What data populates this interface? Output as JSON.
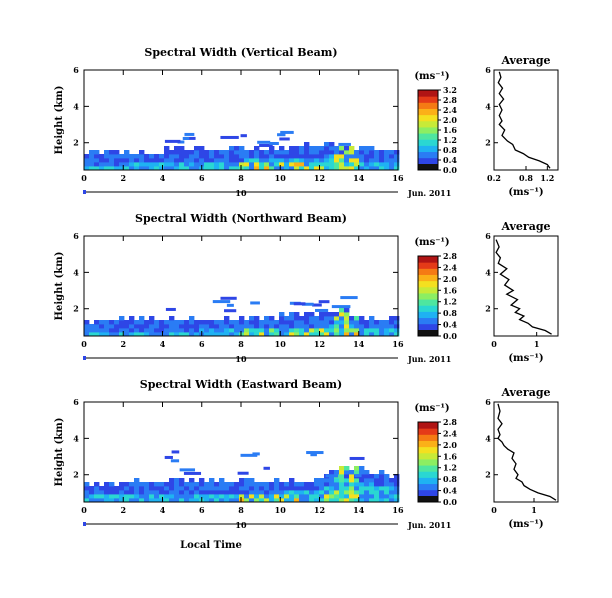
{
  "figure": {
    "xlabel": "Local Time",
    "date_label": "Jun. 2011",
    "date_marker": "10",
    "ylabel": "Height (km)",
    "avg_title": "Average",
    "unit_label": "(ms⁻¹)",
    "colormap": [
      "#1e28b4",
      "#2e46e6",
      "#2a7cf4",
      "#1fb2f2",
      "#2ad7d2",
      "#4ee6a0",
      "#8cee62",
      "#c8ea38",
      "#f4e020",
      "#fbb018",
      "#f57a14",
      "#e43a18",
      "#b01414"
    ]
  },
  "chart_data": [
    {
      "type": "heatmap",
      "title": "Spectral Width (Vertical Beam)",
      "xlabel": "Local Time",
      "ylabel": "Height (km)",
      "x_ticks": [
        "0",
        "2",
        "4",
        "6",
        "8",
        "10",
        "12",
        "14",
        "16"
      ],
      "y_ticks": [
        "2",
        "4",
        "6"
      ],
      "xlim": [
        0,
        16
      ],
      "ylim": [
        0.5,
        6
      ],
      "colorbar": {
        "label": "(ms⁻¹)",
        "ticks": [
          "0.0",
          "0.4",
          "0.8",
          "1.2",
          "1.6",
          "2.0",
          "2.4",
          "2.8",
          "3.2"
        ],
        "range": [
          0,
          3.2
        ]
      },
      "echo_top_km": [
        [
          0,
          1.4
        ],
        [
          2,
          1.5
        ],
        [
          4,
          1.6
        ],
        [
          6,
          1.6
        ],
        [
          8,
          1.7
        ],
        [
          10,
          1.8
        ],
        [
          12,
          1.9
        ],
        [
          13,
          2.0
        ],
        [
          14,
          1.7
        ],
        [
          16,
          1.6
        ]
      ],
      "average_profile": {
        "title": "Average",
        "xlabel": "(ms⁻¹)",
        "x_ticks": [
          "0.2",
          "0.8",
          "1.2"
        ],
        "y_ticks": [
          "2",
          "4",
          "6"
        ],
        "xlim": [
          0.2,
          1.4
        ],
        "ylim": [
          0.5,
          6
        ],
        "points": [
          [
            1.25,
            0.6
          ],
          [
            1.2,
            0.8
          ],
          [
            1.05,
            1.0
          ],
          [
            0.85,
            1.2
          ],
          [
            0.75,
            1.4
          ],
          [
            0.6,
            1.6
          ],
          [
            0.55,
            1.9
          ],
          [
            0.45,
            2.1
          ],
          [
            0.35,
            2.4
          ],
          [
            0.4,
            2.7
          ],
          [
            0.3,
            3.0
          ],
          [
            0.35,
            3.2
          ],
          [
            0.3,
            3.5
          ],
          [
            0.35,
            3.8
          ],
          [
            0.3,
            4.1
          ],
          [
            0.38,
            4.4
          ],
          [
            0.3,
            4.7
          ],
          [
            0.36,
            5.0
          ],
          [
            0.28,
            5.3
          ],
          [
            0.33,
            5.6
          ],
          [
            0.3,
            5.9
          ]
        ]
      }
    },
    {
      "type": "heatmap",
      "title": "Spectral Width (Northward Beam)",
      "xlabel": "Local Time",
      "ylabel": "Height (km)",
      "x_ticks": [
        "0",
        "2",
        "4",
        "6",
        "8",
        "10",
        "12",
        "14",
        "16"
      ],
      "y_ticks": [
        "2",
        "4",
        "6"
      ],
      "xlim": [
        0,
        16
      ],
      "ylim": [
        0.5,
        6
      ],
      "colorbar": {
        "label": "(ms⁻¹)",
        "ticks": [
          "0.0",
          "0.4",
          "0.8",
          "1.2",
          "1.6",
          "2.0",
          "2.4",
          "2.8"
        ],
        "range": [
          0,
          2.8
        ]
      },
      "echo_top_km": [
        [
          0,
          1.3
        ],
        [
          2,
          1.4
        ],
        [
          4,
          1.4
        ],
        [
          6,
          1.5
        ],
        [
          8,
          1.5
        ],
        [
          10,
          1.6
        ],
        [
          12,
          1.7
        ],
        [
          13,
          2.0
        ],
        [
          14,
          1.6
        ],
        [
          16,
          1.5
        ]
      ],
      "average_profile": {
        "title": "Average",
        "xlabel": "(ms⁻¹)",
        "x_ticks": [
          "0",
          "1"
        ],
        "y_ticks": [
          "2",
          "4",
          "6"
        ],
        "xlim": [
          0,
          1.5
        ],
        "ylim": [
          0.5,
          6
        ],
        "points": [
          [
            1.35,
            0.6
          ],
          [
            1.2,
            0.8
          ],
          [
            0.9,
            1.0
          ],
          [
            0.8,
            1.2
          ],
          [
            0.6,
            1.4
          ],
          [
            0.7,
            1.6
          ],
          [
            0.5,
            1.8
          ],
          [
            0.6,
            2.0
          ],
          [
            0.4,
            2.2
          ],
          [
            0.55,
            2.5
          ],
          [
            0.3,
            2.8
          ],
          [
            0.45,
            3.0
          ],
          [
            0.25,
            3.3
          ],
          [
            0.35,
            3.6
          ],
          [
            0.15,
            3.9
          ],
          [
            0.3,
            4.2
          ],
          [
            0.1,
            4.5
          ],
          [
            0.15,
            4.8
          ],
          [
            0.05,
            5.1
          ],
          [
            0.12,
            5.4
          ],
          [
            0.05,
            5.8
          ]
        ]
      }
    },
    {
      "type": "heatmap",
      "title": "Spectral Width (Eastward Beam)",
      "xlabel": "Local Time",
      "ylabel": "Height (km)",
      "x_ticks": [
        "0",
        "2",
        "4",
        "6",
        "8",
        "10",
        "12",
        "14",
        "16"
      ],
      "y_ticks": [
        "2",
        "4",
        "6"
      ],
      "xlim": [
        0,
        16
      ],
      "ylim": [
        0.5,
        6
      ],
      "colorbar": {
        "label": "(ms⁻¹)",
        "ticks": [
          "0.0",
          "0.4",
          "0.8",
          "1.2",
          "1.6",
          "2.0",
          "2.4",
          "2.8"
        ],
        "range": [
          0,
          2.8
        ]
      },
      "echo_top_km": [
        [
          0,
          1.5
        ],
        [
          2,
          1.6
        ],
        [
          4,
          1.7
        ],
        [
          6,
          1.7
        ],
        [
          8,
          1.7
        ],
        [
          10,
          1.7
        ],
        [
          12,
          1.8
        ],
        [
          13,
          2.5
        ],
        [
          14,
          2.3
        ],
        [
          16,
          1.9
        ]
      ],
      "average_profile": {
        "title": "Average",
        "xlabel": "(ms⁻¹)",
        "x_ticks": [
          "0",
          "1"
        ],
        "y_ticks": [
          "2",
          "4",
          "6"
        ],
        "xlim": [
          0,
          1.6
        ],
        "ylim": [
          0.5,
          6
        ],
        "points": [
          [
            1.55,
            0.6
          ],
          [
            1.4,
            0.8
          ],
          [
            1.1,
            1.0
          ],
          [
            0.9,
            1.2
          ],
          [
            0.75,
            1.4
          ],
          [
            0.7,
            1.6
          ],
          [
            0.55,
            1.8
          ],
          [
            0.6,
            2.0
          ],
          [
            0.5,
            2.3
          ],
          [
            0.55,
            2.6
          ],
          [
            0.45,
            2.9
          ],
          [
            0.5,
            3.2
          ],
          [
            0.35,
            3.4
          ],
          [
            0.25,
            3.6
          ],
          [
            0.2,
            3.8
          ],
          [
            0.1,
            4.0
          ],
          [
            0.15,
            4.2
          ],
          [
            0.1,
            4.5
          ],
          [
            0.2,
            4.8
          ],
          [
            0.1,
            5.1
          ],
          [
            0.15,
            5.5
          ],
          [
            0.1,
            5.9
          ]
        ]
      }
    }
  ]
}
